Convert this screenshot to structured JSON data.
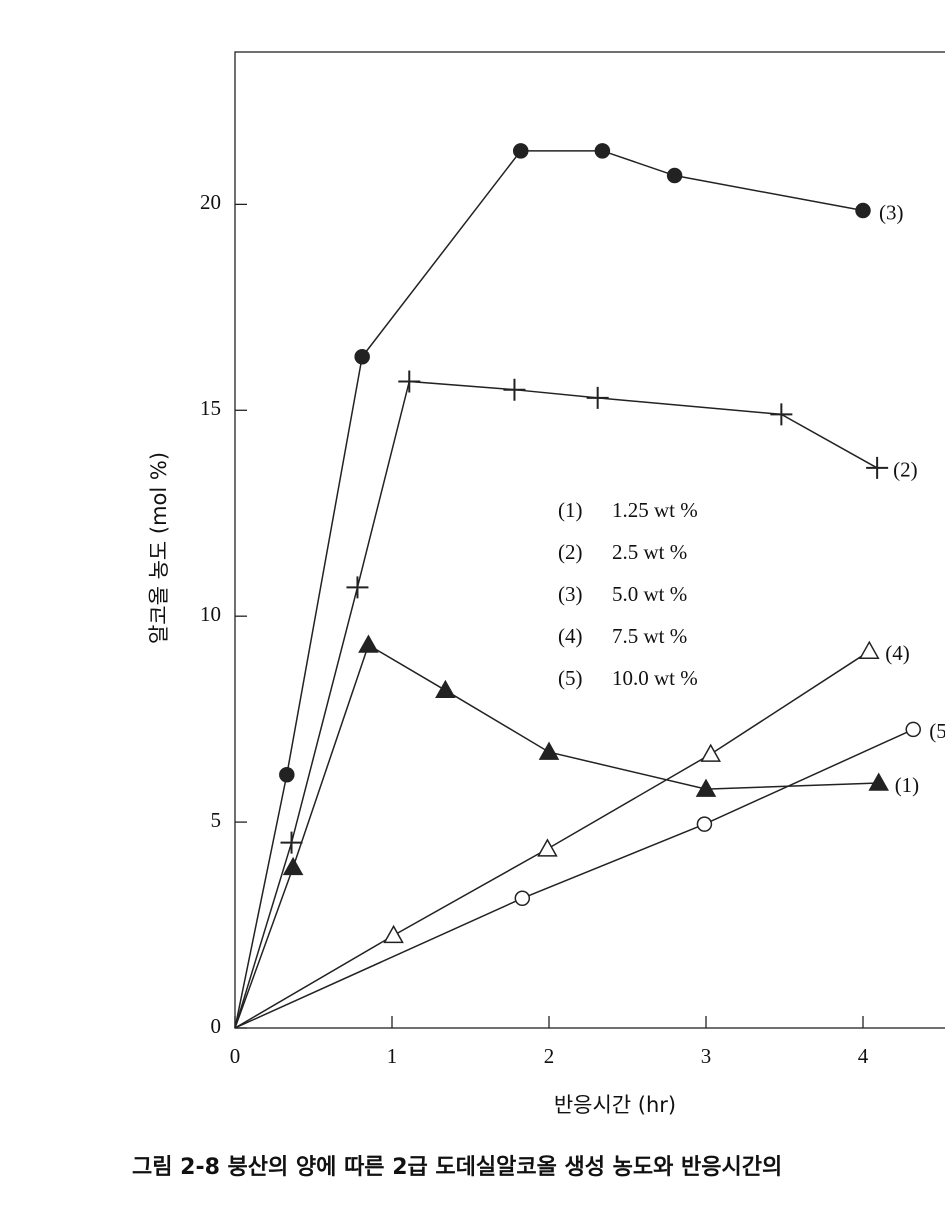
{
  "chart_data": {
    "type": "line",
    "xlabel": "반응시간 (hr)",
    "ylabel": "알코올 농도 (mol %)",
    "caption": "그림 2-8   붕산의 양에 따른 2급 도데실알코올 생성 농도와 반응시간의",
    "xlim": [
      0,
      4.6
    ],
    "ylim": [
      0,
      23.7
    ],
    "xticks": [
      0,
      1,
      2,
      3,
      4
    ],
    "yticks": [
      0,
      5,
      10,
      15,
      20
    ],
    "series": [
      {
        "name": "(1)",
        "description": "1.25  wt %",
        "color": "#222",
        "marker": "triangle",
        "filled": true,
        "x": [
          0.37,
          0.85,
          1.34,
          2.0,
          3.0,
          4.1
        ],
        "values": [
          3.9,
          9.3,
          8.2,
          6.7,
          5.8,
          5.95
        ]
      },
      {
        "name": "(2)",
        "description": "2.5  wt %",
        "color": "#222",
        "marker": "plus",
        "filled": true,
        "x": [
          0.36,
          0.78,
          1.11,
          1.78,
          2.31,
          3.48,
          4.09
        ],
        "values": [
          4.5,
          10.7,
          15.7,
          15.5,
          15.3,
          14.9,
          13.6
        ]
      },
      {
        "name": "(3)",
        "description": "5.0  wt %",
        "color": "#222",
        "marker": "circle",
        "filled": true,
        "x": [
          0.33,
          0.81,
          1.82,
          2.34,
          2.8,
          4.0
        ],
        "values": [
          6.15,
          16.3,
          21.3,
          21.3,
          20.7,
          19.85
        ]
      },
      {
        "name": "(4)",
        "description": "7.5  wt %",
        "color": "#222",
        "marker": "triangle",
        "filled": false,
        "x": [
          1.01,
          1.99,
          3.03,
          4.04
        ],
        "values": [
          2.25,
          4.35,
          6.65,
          9.15
        ]
      },
      {
        "name": "(5)",
        "description": "10.0  wt %",
        "color": "#222",
        "marker": "circle",
        "filled": false,
        "x": [
          1.83,
          2.99,
          4.32
        ],
        "values": [
          3.15,
          4.95,
          7.25
        ]
      }
    ]
  }
}
